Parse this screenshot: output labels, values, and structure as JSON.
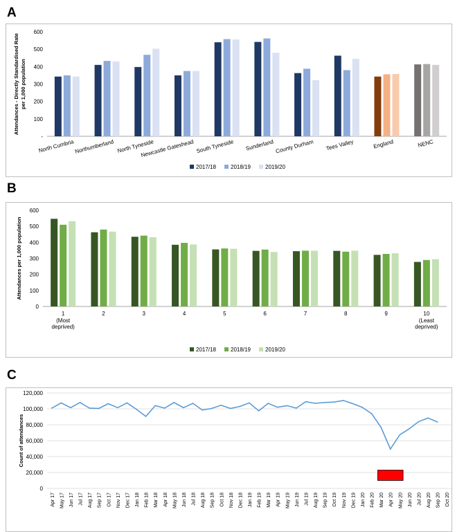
{
  "panels": {
    "a": "A",
    "b": "B",
    "c": "C"
  },
  "chart_data": [
    {
      "panel": "A",
      "type": "bar",
      "ylabel": "Attendances - Directly Standardised Rate per 1,000 population",
      "ylabel_lines": [
        "Attendances - Directly Standardised Rate",
        "per 1,000 population"
      ],
      "yticks": [
        "-",
        "100",
        "200",
        "300",
        "400",
        "500",
        "600"
      ],
      "ylim": [
        0,
        600
      ],
      "grid": false,
      "legend_position": "bottom",
      "categories": [
        "North Cumbria",
        "Northumberland",
        "North Tyneside",
        "Newcastle Gateshead",
        "South Tyneside",
        "Sunderland",
        "County Durham",
        "Tees Valley",
        "England",
        "NENC"
      ],
      "series": [
        {
          "name": "2017/18",
          "values": [
            343,
            410,
            398,
            350,
            540,
            542,
            363,
            463,
            343,
            413
          ],
          "color": "#1f3864"
        },
        {
          "name": "2018/19",
          "values": [
            350,
            433,
            468,
            375,
            558,
            562,
            388,
            380,
            356,
            415
          ],
          "color": "#8eaadb"
        },
        {
          "name": "2019/20",
          "values": [
            343,
            430,
            503,
            375,
            556,
            480,
            322,
            445,
            358,
            410
          ],
          "color": "#d9e1f2"
        }
      ],
      "category_colors": {
        "England": [
          "#843c0c",
          "#f4b183",
          "#f8cbad"
        ],
        "NENC": [
          "#767171",
          "#a6a6a6",
          "#d0cece"
        ]
      }
    },
    {
      "panel": "B",
      "type": "bar",
      "ylabel": "Attendances per 1,000 population",
      "yticks": [
        "0",
        "100",
        "200",
        "300",
        "400",
        "500",
        "600"
      ],
      "ylim": [
        0,
        600
      ],
      "grid": false,
      "legend_position": "bottom",
      "categories": [
        "1",
        "2",
        "3",
        "4",
        "5",
        "6",
        "7",
        "8",
        "9",
        "10"
      ],
      "category_sublabels": {
        "1": [
          "(Most",
          "deprived)"
        ],
        "10": [
          "(Least",
          "deprived)"
        ]
      },
      "series": [
        {
          "name": "2017/18",
          "values": [
            547,
            463,
            435,
            385,
            356,
            347,
            345,
            347,
            322,
            278
          ],
          "color": "#375623"
        },
        {
          "name": "2018/19",
          "values": [
            510,
            480,
            442,
            397,
            362,
            355,
            348,
            342,
            328,
            290
          ],
          "color": "#70ad47"
        },
        {
          "name": "2019/20",
          "values": [
            532,
            467,
            432,
            387,
            360,
            340,
            348,
            348,
            332,
            295
          ],
          "color": "#c5e0b4"
        }
      ]
    },
    {
      "panel": "C",
      "type": "line",
      "ylabel": "Count of attendances",
      "yticks": [
        "0",
        "20,000",
        "40,000",
        "60,000",
        "80,000",
        "100,000",
        "120,000"
      ],
      "ylim": [
        0,
        120000
      ],
      "grid": true,
      "line_color": "#5b9bd5",
      "x": [
        "Apr 17",
        "May 17",
        "Jun 17",
        "Jul 17",
        "Aug 17",
        "Sep 17",
        "Oct 17",
        "Nov 17",
        "Dec 17",
        "Jan 18",
        "Feb 18",
        "Mar 18",
        "Apr 18",
        "May 18",
        "Jun 18",
        "Jul 18",
        "Aug 18",
        "Sep 18",
        "Oct 18",
        "Nov 18",
        "Dec 18",
        "Jan 19",
        "Feb 19",
        "Mar 19",
        "Apr 19",
        "May 19",
        "Jun 19",
        "Jul 19",
        "Aug 19",
        "Sep 19",
        "Oct 19",
        "Nov 19",
        "Dec 19",
        "Jan 20",
        "Feb 20",
        "Mar 20",
        "Apr 20",
        "May 20",
        "Jun 20",
        "Jul 20",
        "Aug 20",
        "Sep 20",
        "Oct 20"
      ],
      "values": [
        101000,
        107500,
        101500,
        108000,
        101000,
        100500,
        106500,
        101500,
        107500,
        99500,
        90500,
        104000,
        101000,
        108000,
        101500,
        107000,
        98500,
        100500,
        104500,
        100500,
        103000,
        107500,
        97500,
        107000,
        102000,
        104000,
        101000,
        109000,
        107000,
        108000,
        108500,
        110500,
        106500,
        102000,
        94000,
        77000,
        49500,
        67500,
        75000,
        84000,
        88500,
        83500,
        null
      ],
      "highlight": {
        "from": "Mar 20",
        "to": "May 20",
        "y_from": 10000,
        "y_to": 23000,
        "color": "#ff0000"
      }
    }
  ]
}
